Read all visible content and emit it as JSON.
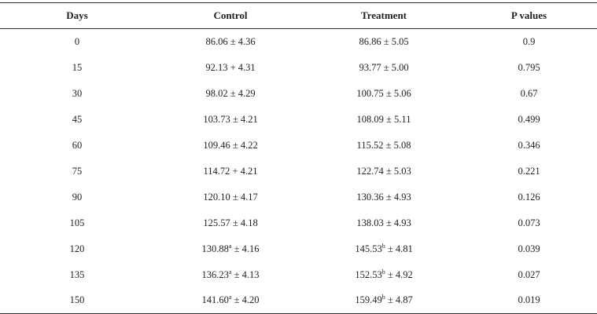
{
  "table": {
    "headers": [
      "Days",
      "Control",
      "Treatment",
      "P values"
    ],
    "rows": [
      {
        "days": "0",
        "control": {
          "mean": "86.06",
          "sup": "",
          "op": "±",
          "sd": "4.36"
        },
        "treatment": {
          "mean": "86.86",
          "sup": "",
          "op": "±",
          "sd": "5.05"
        },
        "p": "0.9"
      },
      {
        "days": "15",
        "control": {
          "mean": "92.13",
          "sup": "",
          "op": "+",
          "sd": "4.31"
        },
        "treatment": {
          "mean": "93.77",
          "sup": "",
          "op": "±",
          "sd": "5.00"
        },
        "p": "0.795"
      },
      {
        "days": "30",
        "control": {
          "mean": "98.02",
          "sup": "",
          "op": "±",
          "sd": "4.29"
        },
        "treatment": {
          "mean": "100.75",
          "sup": "",
          "op": "±",
          "sd": "5.06"
        },
        "p": "0.67"
      },
      {
        "days": "45",
        "control": {
          "mean": "103.73",
          "sup": "",
          "op": "±",
          "sd": "4.21"
        },
        "treatment": {
          "mean": "108.09",
          "sup": "",
          "op": "±",
          "sd": "5.11"
        },
        "p": "0.499"
      },
      {
        "days": "60",
        "control": {
          "mean": "109.46",
          "sup": "",
          "op": "±",
          "sd": "4.22"
        },
        "treatment": {
          "mean": "115.52",
          "sup": "",
          "op": "±",
          "sd": "5.08"
        },
        "p": "0.346"
      },
      {
        "days": "75",
        "control": {
          "mean": "114.72",
          "sup": "",
          "op": "+",
          "sd": "4.21"
        },
        "treatment": {
          "mean": "122.74",
          "sup": "",
          "op": "±",
          "sd": "5.03"
        },
        "p": "0.221"
      },
      {
        "days": "90",
        "control": {
          "mean": "120.10",
          "sup": "",
          "op": "±",
          "sd": "4.17"
        },
        "treatment": {
          "mean": "130.36",
          "sup": "",
          "op": "±",
          "sd": "4.93"
        },
        "p": "0.126"
      },
      {
        "days": "105",
        "control": {
          "mean": "125.57",
          "sup": "",
          "op": "±",
          "sd": "4.18"
        },
        "treatment": {
          "mean": "138.03",
          "sup": "",
          "op": "±",
          "sd": "4.93"
        },
        "p": "0.073"
      },
      {
        "days": "120",
        "control": {
          "mean": "130.88",
          "sup": "a",
          "op": "±",
          "sd": "4.16"
        },
        "treatment": {
          "mean": "145.53",
          "sup": "b",
          "op": "±",
          "sd": "4.81"
        },
        "p": "0.039"
      },
      {
        "days": "135",
        "control": {
          "mean": "136.23",
          "sup": "a",
          "op": "±",
          "sd": "4.13"
        },
        "treatment": {
          "mean": "152.53",
          "sup": "b",
          "op": "±",
          "sd": "4.92"
        },
        "p": "0.027"
      },
      {
        "days": "150",
        "control": {
          "mean": "141.60",
          "sup": "a",
          "op": "±",
          "sd": "4.20"
        },
        "treatment": {
          "mean": "159.49",
          "sup": "b",
          "op": "±",
          "sd": "4.87"
        },
        "p": "0.019"
      }
    ]
  }
}
